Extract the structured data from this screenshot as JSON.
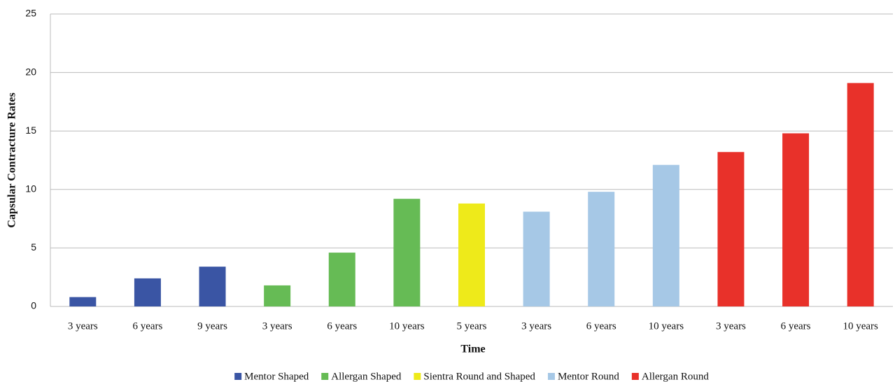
{
  "chart_data": {
    "type": "bar",
    "y_label": "Capsular Contracture Rates",
    "x_label": "Time",
    "categories": [
      "3 years",
      "6 years",
      "9 years",
      "3 years",
      "6 years",
      "10 years",
      "5 years",
      "3 years",
      "6 years",
      "10 years",
      "3 years",
      "6 years",
      "10 years"
    ],
    "series": [
      {
        "name": "Mentor Shaped",
        "color": "#3a55a4",
        "values": [
          0.8,
          2.4,
          3.4,
          null,
          null,
          null,
          null,
          null,
          null,
          null,
          null,
          null,
          null
        ]
      },
      {
        "name": "Allergan Shaped",
        "color": "#66bb55",
        "values": [
          null,
          null,
          null,
          1.8,
          4.6,
          9.2,
          null,
          null,
          null,
          null,
          null,
          null,
          null
        ]
      },
      {
        "name": "Sientra Round and Shaped",
        "color": "#eeea1a",
        "values": [
          null,
          null,
          null,
          null,
          null,
          null,
          8.8,
          null,
          null,
          null,
          null,
          null,
          null
        ]
      },
      {
        "name": "Mentor Round",
        "color": "#a6c8e6",
        "values": [
          null,
          null,
          null,
          null,
          null,
          null,
          null,
          8.1,
          9.8,
          12.1,
          null,
          null,
          null
        ]
      },
      {
        "name": "Allergan Round",
        "color": "#e8312a",
        "values": [
          null,
          null,
          null,
          null,
          null,
          null,
          null,
          null,
          null,
          null,
          13.2,
          14.8,
          19.1
        ]
      }
    ],
    "ylim": [
      0,
      25
    ],
    "yticks": [
      0,
      5,
      10,
      15,
      20,
      25
    ],
    "grid": true,
    "legend": "bottom"
  }
}
